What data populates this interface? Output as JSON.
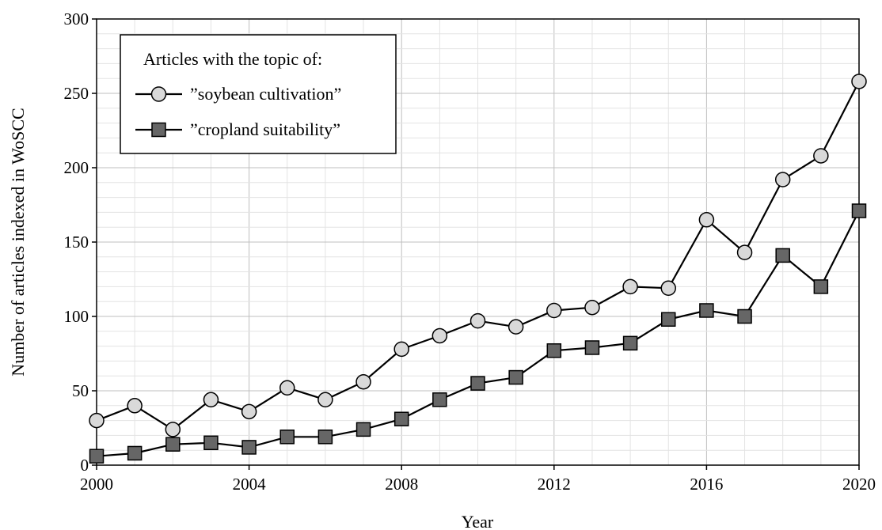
{
  "chart_data": {
    "type": "line",
    "title": "",
    "xlabel": "Year",
    "ylabel": "Number of articles indexed in WoSCC",
    "xlim": [
      2000,
      2020
    ],
    "ylim": [
      0,
      300
    ],
    "x_ticks": [
      2000,
      2004,
      2008,
      2012,
      2016,
      2020
    ],
    "y_ticks": [
      0,
      50,
      100,
      150,
      200,
      250,
      300
    ],
    "grid": true,
    "x": [
      2000,
      2001,
      2002,
      2003,
      2004,
      2005,
      2006,
      2007,
      2008,
      2009,
      2010,
      2011,
      2012,
      2013,
      2014,
      2015,
      2016,
      2017,
      2018,
      2019,
      2020
    ],
    "legend": {
      "title": "Articles with the topic of:",
      "position": "top-left"
    },
    "series": [
      {
        "name": "””soybean cultivation”",
        "marker": "circle",
        "color": "#d9d9d9",
        "values": [
          30,
          40,
          24,
          44,
          36,
          52,
          44,
          56,
          78,
          87,
          97,
          93,
          104,
          106,
          120,
          119,
          165,
          143,
          192,
          208,
          258
        ]
      },
      {
        "name": "””cropland suitability”",
        "marker": "square",
        "color": "#666666",
        "values": [
          6,
          8,
          14,
          15,
          12,
          19,
          19,
          24,
          31,
          44,
          55,
          59,
          77,
          79,
          82,
          98,
          104,
          100,
          141,
          120,
          171
        ]
      }
    ]
  }
}
